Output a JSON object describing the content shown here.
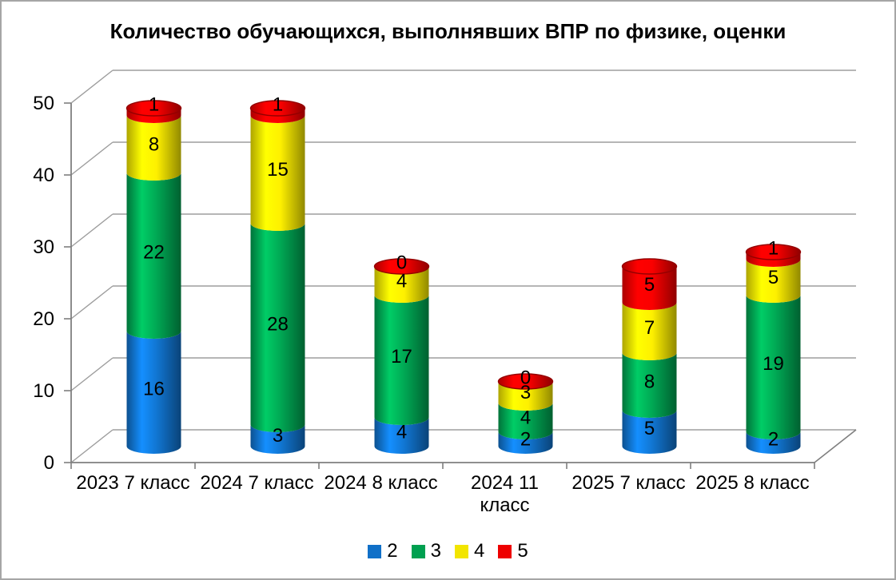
{
  "chart_data": {
    "type": "bar",
    "subtype": "stacked-cylinder-3d",
    "title": "Количество обучающихся, выполнявших ВПР по физике, оценки",
    "categories": [
      "2023 7 класс",
      "2024 7 класс",
      "2024 8 класс",
      "2024 11\nкласс",
      "2025 7 класс",
      "2025 8 класс"
    ],
    "series": [
      {
        "name": "2",
        "color": "#1070C8",
        "values": [
          16,
          3,
          4,
          2,
          5,
          2
        ]
      },
      {
        "name": "3",
        "color": "#00A050",
        "values": [
          22,
          28,
          17,
          4,
          8,
          19
        ]
      },
      {
        "name": "4",
        "color": "#F2E500",
        "values": [
          8,
          15,
          4,
          3,
          7,
          5
        ]
      },
      {
        "name": "5",
        "color": "#EE0000",
        "values": [
          1,
          1,
          0,
          0,
          5,
          1
        ]
      }
    ],
    "totals": [
      47,
      47,
      25,
      9,
      25,
      27
    ],
    "ylim": [
      0,
      50
    ],
    "yticks": [
      0,
      10,
      20,
      30,
      40,
      50
    ],
    "grid": true,
    "data_labels": true,
    "legend_position": "bottom",
    "xlabel": "",
    "ylabel": ""
  },
  "colors": {
    "background": "#FFFFFF",
    "border": "#A6A6A6",
    "gridline": "#9D9D9D",
    "axis": "#7F7F7F",
    "text": "#000000"
  }
}
